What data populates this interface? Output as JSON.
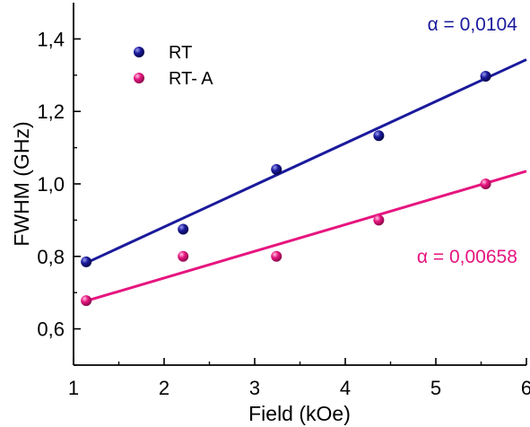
{
  "chart_data": {
    "type": "scatter",
    "xlabel": "Field (kOe)",
    "ylabel": "FWHM (GHz)",
    "xlim": [
      1,
      6
    ],
    "ylim": [
      0.5,
      1.5
    ],
    "x_ticks": [
      1,
      2,
      3,
      4,
      5,
      6
    ],
    "x_tick_labels": [
      "1",
      "2",
      "3",
      "4",
      "5",
      "6"
    ],
    "y_ticks": [
      0.6,
      0.8,
      1.0,
      1.2,
      1.4
    ],
    "y_tick_labels": [
      "0,6",
      "0,8",
      "1,0",
      "1,2",
      "1,4"
    ],
    "grid": false,
    "legend_position": "top-left",
    "series": [
      {
        "name": "RT",
        "color": "#1a1a9c",
        "x": [
          1.14,
          2.21,
          3.24,
          4.37,
          5.55
        ],
        "y": [
          0.785,
          0.875,
          1.04,
          1.133,
          1.297
        ],
        "fit_line": {
          "x": [
            1.14,
            6.0
          ],
          "y": [
            0.782,
            1.343
          ]
        }
      },
      {
        "name": "RT- A",
        "color": "#e6157f",
        "x": [
          1.14,
          2.21,
          3.24,
          4.37,
          5.55
        ],
        "y": [
          0.678,
          0.8,
          0.8,
          0.9,
          1.0
        ],
        "fit_line": {
          "x": [
            1.14,
            6.0
          ],
          "y": [
            0.677,
            1.035
          ]
        }
      }
    ],
    "annotations": [
      {
        "text": "α = 0,0104",
        "series": "RT",
        "color": "#1a1a9c",
        "x": 5.9,
        "y": 1.44
      },
      {
        "text": "α = 0,00658",
        "series": "RT- A",
        "color": "#e6157f",
        "x": 5.9,
        "y": 0.8
      }
    ]
  }
}
